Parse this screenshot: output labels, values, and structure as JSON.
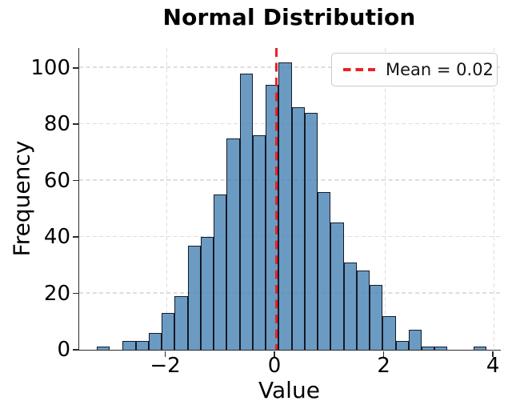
{
  "title": "Normal Distribution",
  "axes": {
    "xlabel": "Value",
    "ylabel": "Frequency"
  },
  "legend": {
    "label": "Mean = 0.02",
    "line_icon": "red-dashed-line"
  },
  "colors": {
    "bar_fill": "rgba(70,130,180,0.8)",
    "bar_edge": "rgba(10,12,22,0.9)",
    "mean_line": "#e8222a",
    "grid": "#dedede",
    "spine": "#2b2b2b",
    "text": "#000000",
    "legend_border": "#cccccc",
    "background": "#ffffff"
  },
  "chart_data": {
    "type": "bar",
    "subtype": "histogram",
    "title": "Normal Distribution",
    "xlabel": "Value",
    "ylabel": "Frequency",
    "bin_start": -3.27,
    "bin_width": 0.238,
    "counts": [
      1,
      0,
      3,
      3,
      6,
      13,
      19,
      37,
      40,
      55,
      75,
      98,
      76,
      94,
      102,
      86,
      84,
      56,
      45,
      31,
      28,
      23,
      12,
      3,
      7,
      1,
      1,
      0,
      0,
      1
    ],
    "mean": 0.02,
    "mean_label": "Mean = 0.02",
    "xticks": [
      -2,
      0,
      2,
      4
    ],
    "xtick_labels": [
      "−2",
      "0",
      "2",
      "4"
    ],
    "yticks": [
      0,
      20,
      40,
      60,
      80,
      100
    ],
    "ytick_labels": [
      "0",
      "20",
      "40",
      "60",
      "80",
      "100"
    ],
    "xlim": [
      -3.59,
      4.13
    ],
    "ylim": [
      0,
      107
    ],
    "grid": "dashed",
    "legend_position": "upper right"
  }
}
